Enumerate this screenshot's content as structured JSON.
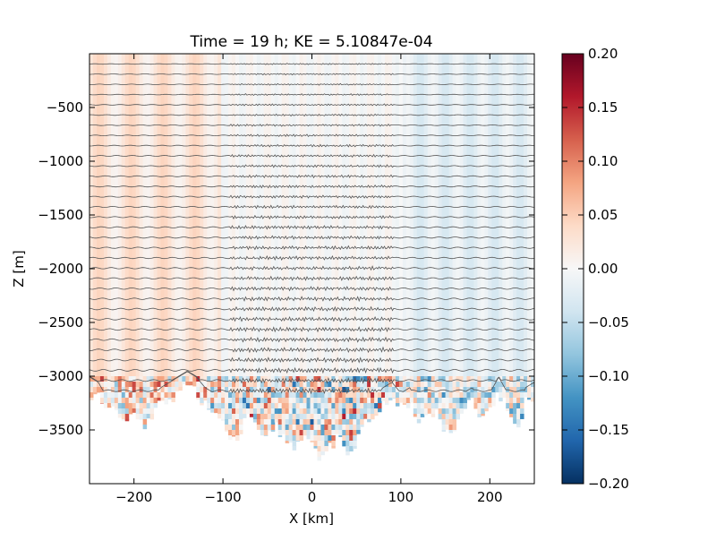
{
  "chart_data": {
    "type": "heatmap",
    "title": "Time = 19 h; KE = 5.10847e-04",
    "xlabel": "X [km]",
    "ylabel": "Z [m]",
    "xlim": [
      -250,
      250
    ],
    "ylim": [
      -4000,
      0
    ],
    "x_ticks": [
      -200,
      -100,
      0,
      100,
      200
    ],
    "x_tick_labels": [
      "−200",
      "−100",
      "0",
      "100",
      "200"
    ],
    "y_ticks": [
      -500,
      -1000,
      -1500,
      -2000,
      -2500,
      -3000,
      -3500
    ],
    "y_tick_labels": [
      "−500",
      "−1000",
      "−1500",
      "−2000",
      "−2500",
      "−3000",
      "−3500"
    ],
    "colorbar": {
      "range": [
        -0.2,
        0.2
      ],
      "ticks": [
        0.2,
        0.15,
        0.1,
        0.05,
        0.0,
        -0.05,
        -0.1,
        -0.15,
        -0.2
      ],
      "tick_labels": [
        "0.20",
        "0.15",
        "0.10",
        "0.05",
        "0.00",
        "−0.05",
        "−0.10",
        "−0.15",
        "−0.20"
      ],
      "colormap": "RdBu_r",
      "colors": [
        "#053061",
        "#2166ac",
        "#4393c3",
        "#92c5de",
        "#d1e5f0",
        "#f7f7f7",
        "#fddbc7",
        "#f4a582",
        "#d6604d",
        "#b2182b",
        "#67001f"
      ]
    },
    "bottom_depth": [
      [
        -250,
        -3150
      ],
      [
        -240,
        -3200
      ],
      [
        -230,
        -3350
      ],
      [
        -220,
        -3300
      ],
      [
        -210,
        -3400
      ],
      [
        -200,
        -3300
      ],
      [
        -190,
        -3450
      ],
      [
        -180,
        -3350
      ],
      [
        -170,
        -3250
      ],
      [
        -160,
        -3200
      ],
      [
        -150,
        -3150
      ],
      [
        -140,
        -3100
      ],
      [
        -130,
        -3150
      ],
      [
        -120,
        -3250
      ],
      [
        -110,
        -3300
      ],
      [
        -100,
        -3450
      ],
      [
        -90,
        -3600
      ],
      [
        -80,
        -3500
      ],
      [
        -70,
        -3350
      ],
      [
        -60,
        -3500
      ],
      [
        -50,
        -3550
      ],
      [
        -40,
        -3450
      ],
      [
        -30,
        -3600
      ],
      [
        -20,
        -3700
      ],
      [
        -10,
        -3550
      ],
      [
        0,
        -3650
      ],
      [
        10,
        -3750
      ],
      [
        20,
        -3650
      ],
      [
        30,
        -3550
      ],
      [
        40,
        -3700
      ],
      [
        50,
        -3600
      ],
      [
        60,
        -3400
      ],
      [
        70,
        -3350
      ],
      [
        80,
        -3250
      ],
      [
        90,
        -3200
      ],
      [
        100,
        -3300
      ],
      [
        110,
        -3250
      ],
      [
        120,
        -3400
      ],
      [
        130,
        -3350
      ],
      [
        140,
        -3300
      ],
      [
        150,
        -3500
      ],
      [
        160,
        -3450
      ],
      [
        170,
        -3300
      ],
      [
        180,
        -3250
      ],
      [
        190,
        -3350
      ],
      [
        200,
        -3300
      ],
      [
        210,
        -3150
      ],
      [
        220,
        -3300
      ],
      [
        230,
        -3500
      ],
      [
        240,
        -3250
      ],
      [
        250,
        -3200
      ]
    ],
    "isopycnal_spacing_m": 95,
    "notes_series": [
      {
        "region": [
          -250,
          -90
        ],
        "sign": "positive"
      },
      {
        "region": [
          -90,
          90
        ],
        "sign": "mixed"
      },
      {
        "region": [
          90,
          250
        ],
        "sign": "negative"
      }
    ]
  }
}
